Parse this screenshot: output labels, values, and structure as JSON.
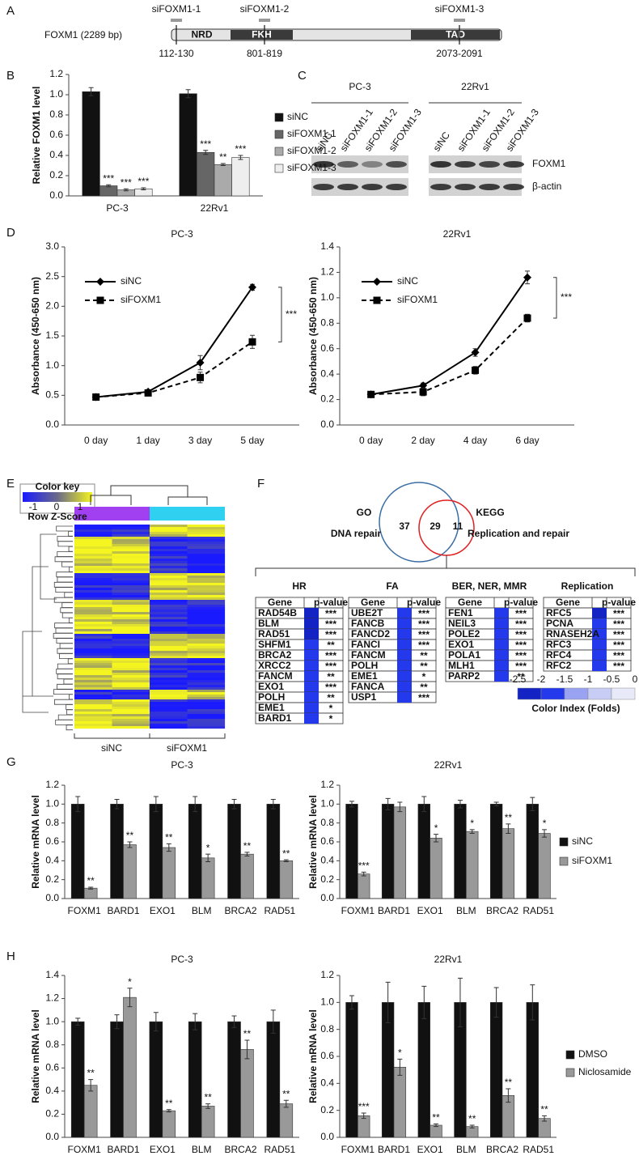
{
  "panel_labels": [
    "A",
    "B",
    "C",
    "D",
    "E",
    "F",
    "G",
    "H"
  ],
  "panel_a": {
    "gene": "FOXM1 (2289 bp)",
    "domains": [
      "NRD",
      "FKH",
      "TAD"
    ],
    "sirnas": [
      {
        "name": "siFOXM1-1",
        "range": "112-130"
      },
      {
        "name": "siFOXM1-2",
        "range": "801-819"
      },
      {
        "name": "siFOXM1-3",
        "range": "2073-2091"
      }
    ]
  },
  "panel_c": {
    "groups": [
      {
        "name": "PC-3",
        "lanes": [
          "siNC",
          "siFOXM1-1",
          "siFOXM1-2",
          "siFOXM1-3"
        ]
      },
      {
        "name": "22Rv1",
        "lanes": [
          "siNC",
          "siFOXM1-1",
          "siFOXM1-2",
          "siFOXM1-3"
        ]
      }
    ],
    "proteins": [
      "FOXM1",
      "β-actin"
    ]
  },
  "panel_e": {
    "key_title": "Color key",
    "key_ticks": [
      -1,
      0,
      1
    ],
    "key_label": "Row Z-Score",
    "groups": [
      "siNC",
      "siFOXM1"
    ]
  },
  "panel_f": {
    "venn": {
      "left_title": "GO",
      "left_label": "DNA repair",
      "left_only": 37,
      "both": 29,
      "right_only": 11,
      "right_title": "KEGG",
      "right_label": "Replication and repair"
    },
    "tables": [
      {
        "title": "HR",
        "headers": [
          "Gene",
          "p-value"
        ],
        "rows": [
          {
            "gene": "RAD54B",
            "p": "***",
            "color": "#1424c4"
          },
          {
            "gene": "BLM",
            "p": "***",
            "color": "#1424c4"
          },
          {
            "gene": "RAD51",
            "p": "***",
            "color": "#1424c4"
          },
          {
            "gene": "SHFM1",
            "p": "**",
            "color": "#2438ec"
          },
          {
            "gene": "BRCA2",
            "p": "***",
            "color": "#2438ec"
          },
          {
            "gene": "XRCC2",
            "p": "***",
            "color": "#2438ec"
          },
          {
            "gene": "FANCM",
            "p": "**",
            "color": "#2438ec"
          },
          {
            "gene": "EXO1",
            "p": "***",
            "color": "#2438ec"
          },
          {
            "gene": "POLH",
            "p": "**",
            "color": "#2438ec"
          },
          {
            "gene": "EME1",
            "p": "*",
            "color": "#2438ec"
          },
          {
            "gene": "BARD1",
            "p": "*",
            "color": "#2438ec"
          }
        ]
      },
      {
        "title": "FA",
        "headers": [
          "Gene",
          "p-value"
        ],
        "rows": [
          {
            "gene": "UBE2T",
            "p": "***",
            "color": "#2438ec"
          },
          {
            "gene": "FANCB",
            "p": "***",
            "color": "#2438ec"
          },
          {
            "gene": "FANCD2",
            "p": "***",
            "color": "#2438ec"
          },
          {
            "gene": "FANCI",
            "p": "***",
            "color": "#2438ec"
          },
          {
            "gene": "FANCM",
            "p": "**",
            "color": "#2438ec"
          },
          {
            "gene": "POLH",
            "p": "**",
            "color": "#2438ec"
          },
          {
            "gene": "EME1",
            "p": "*",
            "color": "#2438ec"
          },
          {
            "gene": "FANCA",
            "p": "**",
            "color": "#2438ec"
          },
          {
            "gene": "USP1",
            "p": "***",
            "color": "#2438ec"
          }
        ]
      },
      {
        "title": "BER, NER, MMR",
        "headers": [
          "Gene",
          "p-value"
        ],
        "rows": [
          {
            "gene": "FEN1",
            "p": "***",
            "color": "#2438ec"
          },
          {
            "gene": "NEIL3",
            "p": "***",
            "color": "#2438ec"
          },
          {
            "gene": "POLE2",
            "p": "***",
            "color": "#2438ec"
          },
          {
            "gene": "EXO1",
            "p": "***",
            "color": "#2438ec"
          },
          {
            "gene": "POLA1",
            "p": "***",
            "color": "#2438ec"
          },
          {
            "gene": "MLH1",
            "p": "***",
            "color": "#2438ec"
          },
          {
            "gene": "PARP2",
            "p": "**",
            "color": "#2438ec"
          }
        ]
      },
      {
        "title": "Replication",
        "headers": [
          "Gene",
          "p-value"
        ],
        "rows": [
          {
            "gene": "RFC5",
            "p": "***",
            "color": "#1424c4"
          },
          {
            "gene": "PCNA",
            "p": "***",
            "color": "#2438ec"
          },
          {
            "gene": "RNASEH2A",
            "p": "***",
            "color": "#2438ec"
          },
          {
            "gene": "RFC3",
            "p": "***",
            "color": "#2438ec"
          },
          {
            "gene": "RFC4",
            "p": "***",
            "color": "#2438ec"
          },
          {
            "gene": "RFC2",
            "p": "***",
            "color": "#2438ec"
          }
        ]
      }
    ],
    "color_index": {
      "ticks": [
        -2.5,
        -2,
        -1.5,
        -1,
        -0.5,
        0
      ],
      "colors": [
        "#1424c4",
        "#2438ec",
        "#9aa2f2",
        "#c8cdf6",
        "#e8eafa"
      ],
      "label": "Color Index (Folds)"
    }
  },
  "chart_data": [
    {
      "type": "bar",
      "ylabel": "Relative FOXM1 level",
      "categories": [
        "PC-3",
        "22Rv1"
      ],
      "legend": "right",
      "ylim": [
        0,
        1.2
      ],
      "yticks": [
        {
          "value": 0,
          "label": "0.0"
        },
        0.2,
        0.4,
        0.6,
        0.8,
        {
          "value": 1,
          "label": "1.0"
        },
        1.2
      ],
      "series": [
        {
          "name": "siNC",
          "color": "#111111",
          "values": [
            1.03,
            1.01
          ],
          "errors": [
            0.04,
            0.04
          ]
        },
        {
          "name": "siFOXM1-1",
          "color": "#666666",
          "values": [
            0.1,
            0.43
          ],
          "errors": [
            0.01,
            0.02
          ],
          "significance": [
            "***",
            "***"
          ]
        },
        {
          "name": "siFOXM1-2",
          "color": "#aaaaaa",
          "values": [
            0.06,
            0.31
          ],
          "errors": [
            0.01,
            0.01
          ],
          "significance": [
            "***",
            "**"
          ]
        },
        {
          "name": "siFOXM1-3",
          "color": "#eeeeee",
          "values": [
            0.07,
            0.38
          ],
          "errors": [
            0.01,
            0.02
          ],
          "significance": [
            "***",
            "***"
          ]
        }
      ]
    },
    {
      "type": "line",
      "title": "PC-3",
      "ylabel": "Absorbance (450-650 nm)",
      "categories": [
        "0 day",
        "1 day",
        "3 day",
        "5 day"
      ],
      "legend": "upper left",
      "annotation": "***",
      "ylim": [
        0,
        3
      ],
      "yticks": [
        {
          "value": 0,
          "label": "0.0"
        },
        0.5,
        {
          "value": 1,
          "label": "1.0"
        },
        1.5,
        {
          "value": 2,
          "label": "2.0"
        },
        2.5,
        {
          "value": 3,
          "label": "3.0"
        }
      ],
      "series": [
        {
          "name": "siNC",
          "color": "#000000",
          "marker": "diamond",
          "dash": false,
          "values": [
            0.47,
            0.56,
            1.05,
            2.32
          ],
          "errors": [
            0.03,
            0.03,
            0.12,
            0.05
          ]
        },
        {
          "name": "siFOXM1",
          "color": "#000000",
          "marker": "square",
          "dash": true,
          "values": [
            0.47,
            0.54,
            0.8,
            1.4
          ],
          "errors": [
            0.03,
            0.03,
            0.09,
            0.11
          ]
        }
      ]
    },
    {
      "type": "line",
      "title": "22Rv1",
      "ylabel": "Absorbance (450-650 nm)",
      "categories": [
        "0 day",
        "2 day",
        "4 day",
        "6 day"
      ],
      "legend": "upper left",
      "annotation": "***",
      "ylim": [
        0,
        1.4
      ],
      "yticks": [
        {
          "value": 0,
          "label": "0.0"
        },
        0.2,
        0.4,
        0.6,
        0.8,
        {
          "value": 1,
          "label": "1.0"
        },
        1.2,
        1.4
      ],
      "series": [
        {
          "name": "siNC",
          "color": "#000000",
          "marker": "diamond",
          "dash": false,
          "values": [
            0.24,
            0.31,
            0.57,
            1.16
          ],
          "errors": [
            0.02,
            0.02,
            0.03,
            0.05
          ]
        },
        {
          "name": "siFOXM1",
          "color": "#000000",
          "marker": "square",
          "dash": true,
          "values": [
            0.24,
            0.26,
            0.43,
            0.84
          ],
          "errors": [
            0.02,
            0.03,
            0.03,
            0.03
          ]
        }
      ]
    },
    {
      "type": "bar",
      "title": "PC-3",
      "ylabel": "Relative mRNA level",
      "categories": [
        "FOXM1",
        "BARD1",
        "EXO1",
        "BLM",
        "BRCA2",
        "RAD51"
      ],
      "legend": "none",
      "ylim": [
        0,
        1.2
      ],
      "yticks": [
        {
          "value": 0,
          "label": "0.0"
        },
        0.2,
        0.4,
        0.6,
        0.8,
        {
          "value": 1,
          "label": "1.0"
        },
        1.2
      ],
      "series": [
        {
          "name": "siNC",
          "color": "#111111",
          "values": [
            1,
            1,
            1,
            1,
            1,
            1
          ],
          "errors": [
            0.08,
            0.05,
            0.08,
            0.08,
            0.05,
            0.05
          ]
        },
        {
          "name": "siFOXM1",
          "color": "#999999",
          "values": [
            0.11,
            0.57,
            0.54,
            0.43,
            0.47,
            0.4
          ],
          "errors": [
            0.01,
            0.03,
            0.04,
            0.04,
            0.02,
            0.01
          ],
          "significance": [
            "**",
            "**",
            "**",
            "*",
            "**",
            "**"
          ]
        }
      ]
    },
    {
      "type": "bar",
      "title": "22Rv1",
      "ylabel": "Relative mRNA level",
      "categories": [
        "FOXM1",
        "BARD1",
        "EXO1",
        "BLM",
        "BRCA2",
        "RAD51"
      ],
      "legend": "right",
      "ylim": [
        0,
        1.2
      ],
      "yticks": [
        {
          "value": 0,
          "label": "0.0"
        },
        0.2,
        0.4,
        0.6,
        0.8,
        {
          "value": 1,
          "label": "1.0"
        },
        1.2
      ],
      "series": [
        {
          "name": "siNC",
          "color": "#111111",
          "values": [
            1,
            1,
            1,
            1,
            1,
            1
          ],
          "errors": [
            0.03,
            0.06,
            0.08,
            0.04,
            0.02,
            0.07
          ]
        },
        {
          "name": "siFOXM1",
          "color": "#999999",
          "values": [
            0.26,
            0.97,
            0.64,
            0.71,
            0.74,
            0.69
          ],
          "errors": [
            0.02,
            0.05,
            0.04,
            0.02,
            0.05,
            0.04
          ],
          "significance": [
            "***",
            null,
            "*",
            "*",
            "**",
            "*"
          ]
        }
      ]
    },
    {
      "type": "bar",
      "title": "PC-3",
      "ylabel": "Relative mRNA level",
      "categories": [
        "FOXM1",
        "BARD1",
        "EXO1",
        "BLM",
        "BRCA2",
        "RAD51"
      ],
      "legend": "none",
      "ylim": [
        0,
        1.4
      ],
      "yticks": [
        {
          "value": 0,
          "label": "0.0"
        },
        0.2,
        0.4,
        0.6,
        0.8,
        {
          "value": 1,
          "label": "1.0"
        },
        1.2,
        1.4
      ],
      "series": [
        {
          "name": "DMSO",
          "color": "#111111",
          "values": [
            1,
            1,
            1,
            1,
            1,
            1
          ],
          "errors": [
            0.03,
            0.06,
            0.08,
            0.07,
            0.05,
            0.1
          ]
        },
        {
          "name": "Niclosamide",
          "color": "#999999",
          "values": [
            0.45,
            1.21,
            0.23,
            0.27,
            0.76,
            0.29
          ],
          "errors": [
            0.05,
            0.08,
            0.01,
            0.02,
            0.08,
            0.03
          ],
          "significance": [
            "**",
            "*",
            "**",
            "**",
            "**",
            "**"
          ]
        }
      ]
    },
    {
      "type": "bar",
      "title": "22Rv1",
      "ylabel": "Relative mRNA level",
      "categories": [
        "FOXM1",
        "BARD1",
        "EXO1",
        "BLM",
        "BRCA2",
        "RAD51"
      ],
      "legend": "right",
      "ylim": [
        0,
        1.2
      ],
      "yticks": [
        {
          "value": 0,
          "label": "0.0"
        },
        0.2,
        0.4,
        0.6,
        0.8,
        {
          "value": 1,
          "label": "1.0"
        },
        1.2
      ],
      "series": [
        {
          "name": "DMSO",
          "color": "#111111",
          "values": [
            1,
            1,
            1,
            1,
            1,
            1
          ],
          "errors": [
            0.05,
            0.15,
            0.12,
            0.18,
            0.11,
            0.13
          ]
        },
        {
          "name": "Niclosamide",
          "color": "#999999",
          "values": [
            0.16,
            0.52,
            0.09,
            0.08,
            0.31,
            0.14
          ],
          "errors": [
            0.02,
            0.06,
            0.01,
            0.01,
            0.05,
            0.02
          ],
          "significance": [
            "***",
            "*",
            "**",
            "**",
            "**",
            "**"
          ]
        }
      ]
    }
  ]
}
